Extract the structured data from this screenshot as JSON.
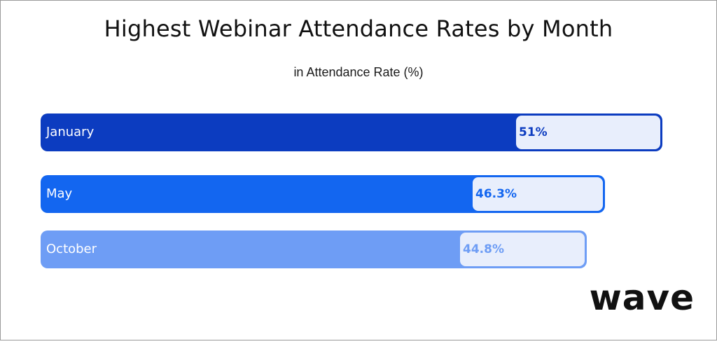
{
  "chart_data": {
    "type": "bar",
    "orientation": "horizontal",
    "title": "Highest Webinar Attendance Rates by Month",
    "subtitle": "in Attendance Rate (%)",
    "categories": [
      "January",
      "May",
      "October"
    ],
    "values": [
      51,
      46.3,
      44.8
    ],
    "value_labels": [
      "51%",
      "46.3%",
      "44.8%"
    ],
    "colors": [
      "#0c3cc0",
      "#1366f0",
      "#6e9df5"
    ],
    "label_box_color": "#e8eefc",
    "xlim": [
      0,
      51
    ],
    "grid": false,
    "legend": "none"
  },
  "brand": {
    "logo_text": "wave"
  }
}
